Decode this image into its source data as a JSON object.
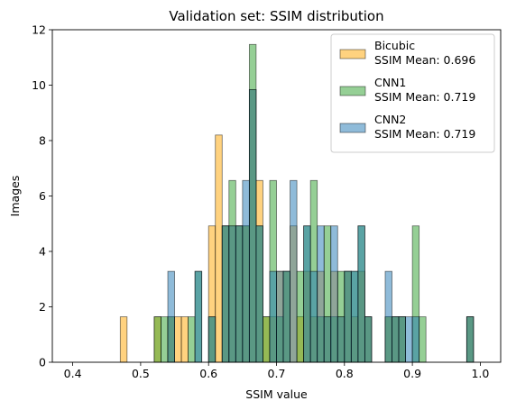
{
  "chart_data": {
    "type": "bar",
    "title": "Validation set: SSIM distribution",
    "xlabel": "SSIM value",
    "ylabel": "Images",
    "xlim": [
      0.37,
      1.03
    ],
    "ylim": [
      0,
      12
    ],
    "xticks": [
      0.4,
      0.5,
      0.6,
      0.7,
      0.8,
      0.9,
      1.0
    ],
    "xtick_labels": [
      "0.4",
      "0.5",
      "0.6",
      "0.7",
      "0.8",
      "0.9",
      "1.0"
    ],
    "yticks": [
      0,
      2,
      4,
      6,
      8,
      10,
      12
    ],
    "ytick_labels": [
      "0",
      "2",
      "4",
      "6",
      "8",
      "10",
      "12"
    ],
    "bin_width": 0.01,
    "bin_starts": [
      0.4,
      0.41,
      0.42,
      0.43,
      0.44,
      0.45,
      0.46,
      0.47,
      0.48,
      0.49,
      0.5,
      0.51,
      0.52,
      0.53,
      0.54,
      0.55,
      0.56,
      0.57,
      0.58,
      0.59,
      0.6,
      0.61,
      0.62,
      0.63,
      0.64,
      0.65,
      0.66,
      0.67,
      0.68,
      0.69,
      0.7,
      0.71,
      0.72,
      0.73,
      0.74,
      0.75,
      0.76,
      0.77,
      0.78,
      0.79,
      0.8,
      0.81,
      0.82,
      0.83,
      0.84,
      0.85,
      0.86,
      0.87,
      0.88,
      0.89,
      0.9,
      0.91,
      0.92,
      0.93,
      0.94,
      0.95,
      0.96,
      0.97,
      0.98,
      0.99
    ],
    "legend_position": "top-right",
    "series": [
      {
        "name": "Bicubic",
        "legend_label": "Bicubic\nSSIM Mean: 0.696",
        "color": "#ffa500",
        "alpha": 0.5,
        "values": [
          0,
          0,
          0,
          0,
          0,
          0,
          0,
          1.64,
          0,
          0,
          0,
          0,
          1.64,
          0,
          1.64,
          1.64,
          1.64,
          0,
          0,
          0,
          4.92,
          8.2,
          4.92,
          4.92,
          4.92,
          4.92,
          9.84,
          6.56,
          1.64,
          1.64,
          3.28,
          3.28,
          4.92,
          1.64,
          3.28,
          1.64,
          3.28,
          1.64,
          3.28,
          1.64,
          3.28,
          1.64,
          3.28,
          1.64,
          0,
          0,
          1.64,
          1.64,
          1.64,
          0,
          0,
          0,
          0,
          0,
          0,
          0,
          0,
          0,
          1.64,
          0
        ]
      },
      {
        "name": "CNN1",
        "legend_label": "CNN1\nSSIM Mean: 0.719",
        "color": "#2ca02c",
        "alpha": 0.5,
        "values": [
          0,
          0,
          0,
          0,
          0,
          0,
          0,
          0,
          0,
          0,
          0,
          0,
          1.64,
          1.64,
          1.64,
          0,
          0,
          1.64,
          3.28,
          0,
          1.64,
          0,
          4.92,
          6.56,
          4.92,
          4.92,
          11.47,
          4.92,
          1.64,
          6.56,
          1.64,
          3.28,
          0,
          3.28,
          4.92,
          6.56,
          1.64,
          4.92,
          1.64,
          3.28,
          3.28,
          3.28,
          4.92,
          1.64,
          0,
          0,
          1.64,
          1.64,
          1.64,
          0,
          4.92,
          1.64,
          0,
          0,
          0,
          0,
          0,
          0,
          1.64,
          0
        ]
      },
      {
        "name": "CNN2",
        "legend_label": "CNN2\nSSIM Mean: 0.719",
        "color": "#1f77b4",
        "alpha": 0.5,
        "values": [
          0,
          0,
          0,
          0,
          0,
          0,
          0,
          0,
          0,
          0,
          0,
          0,
          0,
          0,
          3.28,
          0,
          0,
          0,
          3.28,
          0,
          1.64,
          0,
          4.92,
          4.92,
          4.92,
          6.56,
          9.84,
          4.92,
          0,
          3.28,
          3.28,
          3.28,
          6.56,
          0,
          4.92,
          3.28,
          4.92,
          1.64,
          4.92,
          1.64,
          3.28,
          3.28,
          4.92,
          1.64,
          0,
          0,
          3.28,
          1.64,
          1.64,
          1.64,
          1.64,
          0,
          0,
          0,
          0,
          0,
          0,
          0,
          1.64,
          0
        ]
      }
    ]
  }
}
